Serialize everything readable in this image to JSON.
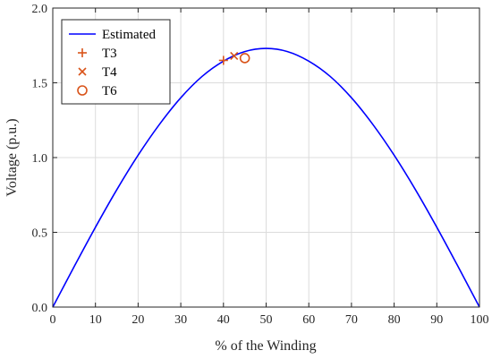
{
  "chart_data": {
    "type": "line",
    "title": "",
    "xlabel": "% of the Winding",
    "ylabel": "Voltage (p.u.)",
    "xlim": [
      0,
      100
    ],
    "ylim": [
      0,
      2
    ],
    "xticks": [
      0,
      10,
      20,
      30,
      40,
      50,
      60,
      70,
      80,
      90,
      100
    ],
    "yticks": [
      0,
      0.5,
      1,
      1.5,
      2
    ],
    "xtick_labels": [
      "0",
      "10",
      "20",
      "30",
      "40",
      "50",
      "60",
      "70",
      "80",
      "90",
      "100"
    ],
    "ytick_labels": [
      "0.0",
      "0.5",
      "1.0",
      "1.5",
      "2.0"
    ],
    "grid": true,
    "legend_position": "top-left",
    "series": [
      {
        "name": "Estimated",
        "kind": "line",
        "color": "#0000ff",
        "x": [
          0,
          5,
          10,
          15,
          20,
          25,
          30,
          35,
          40,
          45,
          50,
          55,
          60,
          65,
          70,
          75,
          80,
          85,
          90,
          95,
          100
        ],
        "y": [
          0,
          0.27,
          0.534,
          0.785,
          1.016,
          1.222,
          1.4,
          1.543,
          1.645,
          1.709,
          1.73,
          1.709,
          1.645,
          1.543,
          1.4,
          1.222,
          1.016,
          0.785,
          0.534,
          0.27,
          0
        ]
      },
      {
        "name": "T3",
        "kind": "marker",
        "marker": "plus",
        "color": "#d95319",
        "x": [
          40
        ],
        "y": [
          1.65
        ]
      },
      {
        "name": "T4",
        "kind": "marker",
        "marker": "x",
        "color": "#d95319",
        "x": [
          42.5
        ],
        "y": [
          1.68
        ]
      },
      {
        "name": "T6",
        "kind": "marker",
        "marker": "circle",
        "color": "#d95319",
        "x": [
          45
        ],
        "y": [
          1.665
        ]
      }
    ]
  }
}
